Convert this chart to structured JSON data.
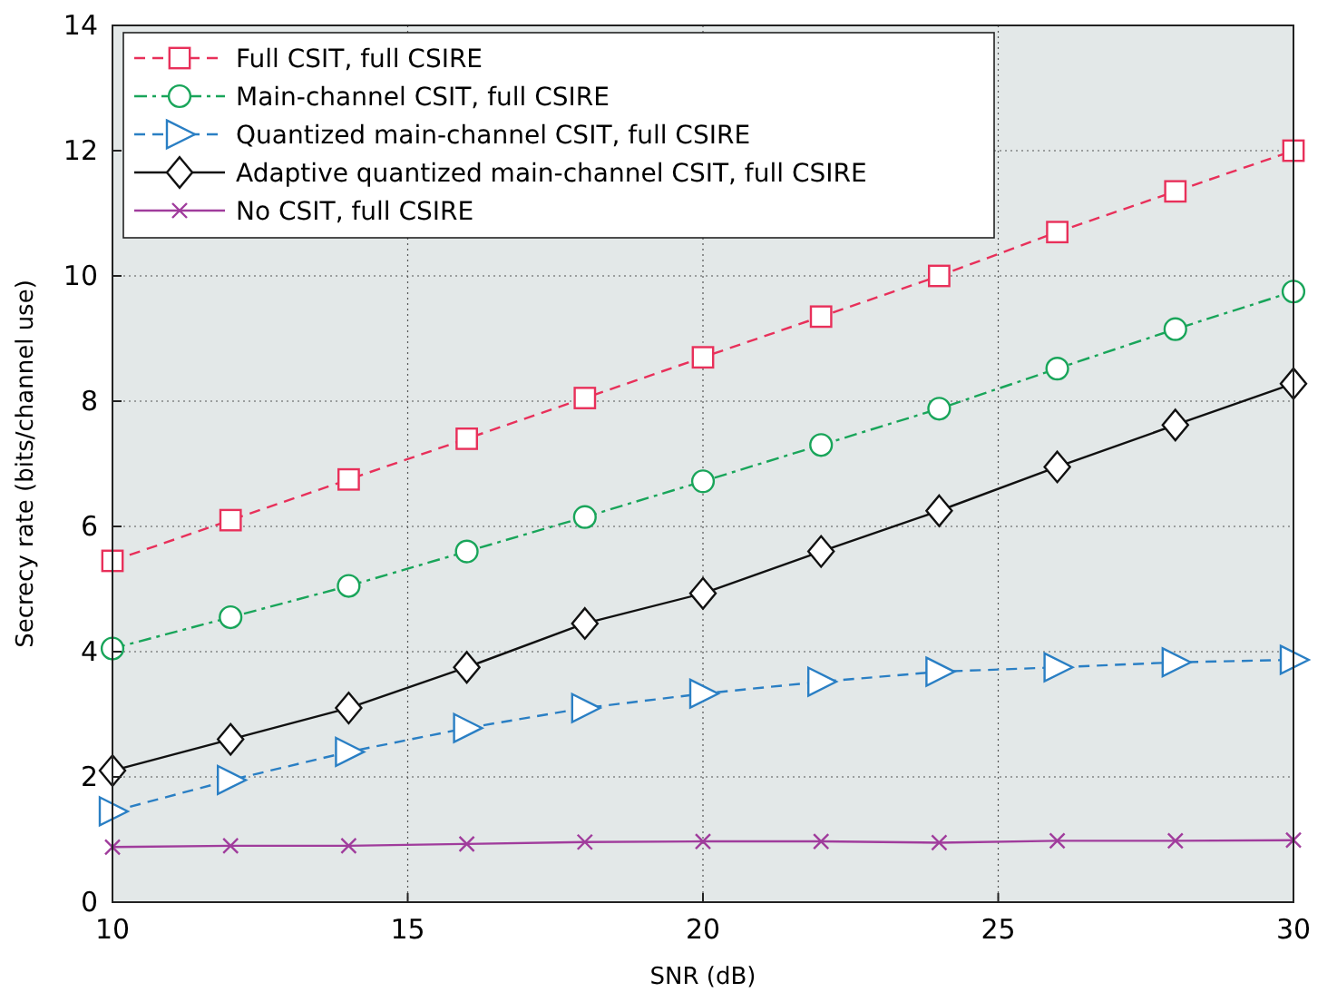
{
  "chart_data": {
    "type": "line",
    "xlabel": "SNR (dB)",
    "ylabel": "Secrecy rate (bits/channel use)",
    "x": [
      10,
      12,
      14,
      16,
      18,
      20,
      22,
      24,
      26,
      28,
      30
    ],
    "xlim": [
      10,
      30
    ],
    "xticks": [
      10,
      15,
      20,
      25,
      30
    ],
    "ylim": [
      0,
      14
    ],
    "yticks": [
      0,
      2,
      4,
      6,
      8,
      10,
      12,
      14
    ],
    "grid": true,
    "legend": "top left",
    "series": [
      {
        "name": "Full CSIT, full CSIRE",
        "color": "#e8305a",
        "marker": "square",
        "line_style": "dashed",
        "values": [
          5.45,
          6.1,
          6.75,
          7.4,
          8.05,
          8.7,
          9.35,
          10.0,
          10.7,
          11.35,
          12.0
        ]
      },
      {
        "name": "Main-channel CSIT, full CSIRE",
        "color": "#19a55a",
        "marker": "circle",
        "line_style": "dashdot",
        "values": [
          4.05,
          4.55,
          5.05,
          5.6,
          6.15,
          6.72,
          7.3,
          7.88,
          8.52,
          9.15,
          9.75
        ]
      },
      {
        "name": "Quantized main-channel CSIT, full CSIRE",
        "color": "#2a7fc4",
        "marker": "triangle",
        "line_style": "dashed",
        "values": [
          1.45,
          1.95,
          2.4,
          2.78,
          3.1,
          3.33,
          3.52,
          3.68,
          3.75,
          3.83,
          3.87
        ]
      },
      {
        "name": "Adaptive quantized main-channel CSIT, full CSIRE",
        "color": "#111111",
        "marker": "diamond",
        "line_style": "solid",
        "values": [
          2.1,
          2.6,
          3.1,
          3.75,
          4.45,
          4.93,
          5.6,
          6.25,
          6.95,
          7.62,
          8.28
        ]
      },
      {
        "name": "No CSIT, full CSIRE",
        "color": "#a03c9c",
        "marker": "cross",
        "line_style": "solid",
        "values": [
          0.88,
          0.9,
          0.9,
          0.93,
          0.96,
          0.97,
          0.97,
          0.95,
          0.98,
          0.98,
          0.99
        ]
      }
    ]
  }
}
